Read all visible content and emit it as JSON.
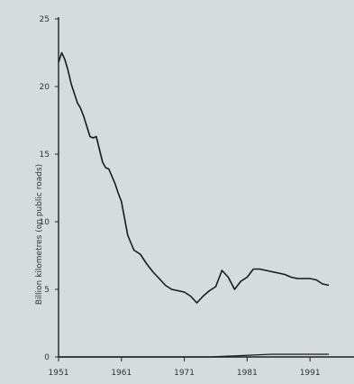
{
  "chart_data": {
    "type": "line",
    "title": "",
    "xlabel": "",
    "ylabel": "Billion kilometres (on public roads)",
    "xlim": [
      1951,
      1998
    ],
    "ylim": [
      0,
      25
    ],
    "xticks": [
      1951,
      1961,
      1971,
      1981,
      1991
    ],
    "xtick_labels": [
      "1951",
      "1961",
      "1971",
      "1981",
      "1991"
    ],
    "yticks": [
      0,
      5,
      10,
      15,
      20,
      25
    ],
    "ytick_labels": [
      "0",
      "5",
      "10",
      "15",
      "20",
      "25"
    ],
    "grid": false,
    "line_color": "#1a1a1a",
    "background": "#d4dcdd",
    "series": [
      {
        "x": [
          1951,
          1951.5,
          1952,
          1952.5,
          1953,
          1954,
          1954.5,
          1955,
          1956,
          1956.5,
          1957,
          1958,
          1958.5,
          1959,
          1960,
          1960.5,
          1961,
          1962,
          1963,
          1964,
          1965,
          1966,
          1967,
          1968,
          1969,
          1970,
          1971,
          1972,
          1973,
          1974,
          1975,
          1976,
          1977,
          1978,
          1979,
          1980,
          1981,
          1982,
          1983,
          1984,
          1985,
          1986,
          1987,
          1988,
          1989,
          1990,
          1991,
          1992,
          1993,
          1994
        ],
        "values": [
          21.8,
          22.5,
          22.0,
          21.2,
          20.2,
          18.8,
          18.4,
          17.8,
          16.3,
          16.2,
          16.3,
          14.4,
          14.0,
          13.9,
          12.8,
          12.1,
          11.5,
          9.0,
          7.9,
          7.6,
          6.9,
          6.3,
          5.8,
          5.3,
          5.0,
          4.9,
          4.8,
          4.5,
          4.0,
          4.5,
          4.9,
          5.2,
          6.4,
          5.9,
          5.0,
          5.6,
          5.9,
          6.5,
          6.5,
          6.4,
          6.3,
          6.2,
          6.1,
          5.9,
          5.8,
          5.8,
          5.8,
          5.7,
          5.4,
          5.3
        ]
      },
      {
        "x": [
          1951,
          1955,
          1960,
          1965,
          1970,
          1975,
          1980,
          1985,
          1990,
          1994
        ],
        "values": [
          0.0,
          0.0,
          0.0,
          0.0,
          0.0,
          0.0,
          0.1,
          0.2,
          0.2,
          0.2
        ]
      }
    ]
  }
}
